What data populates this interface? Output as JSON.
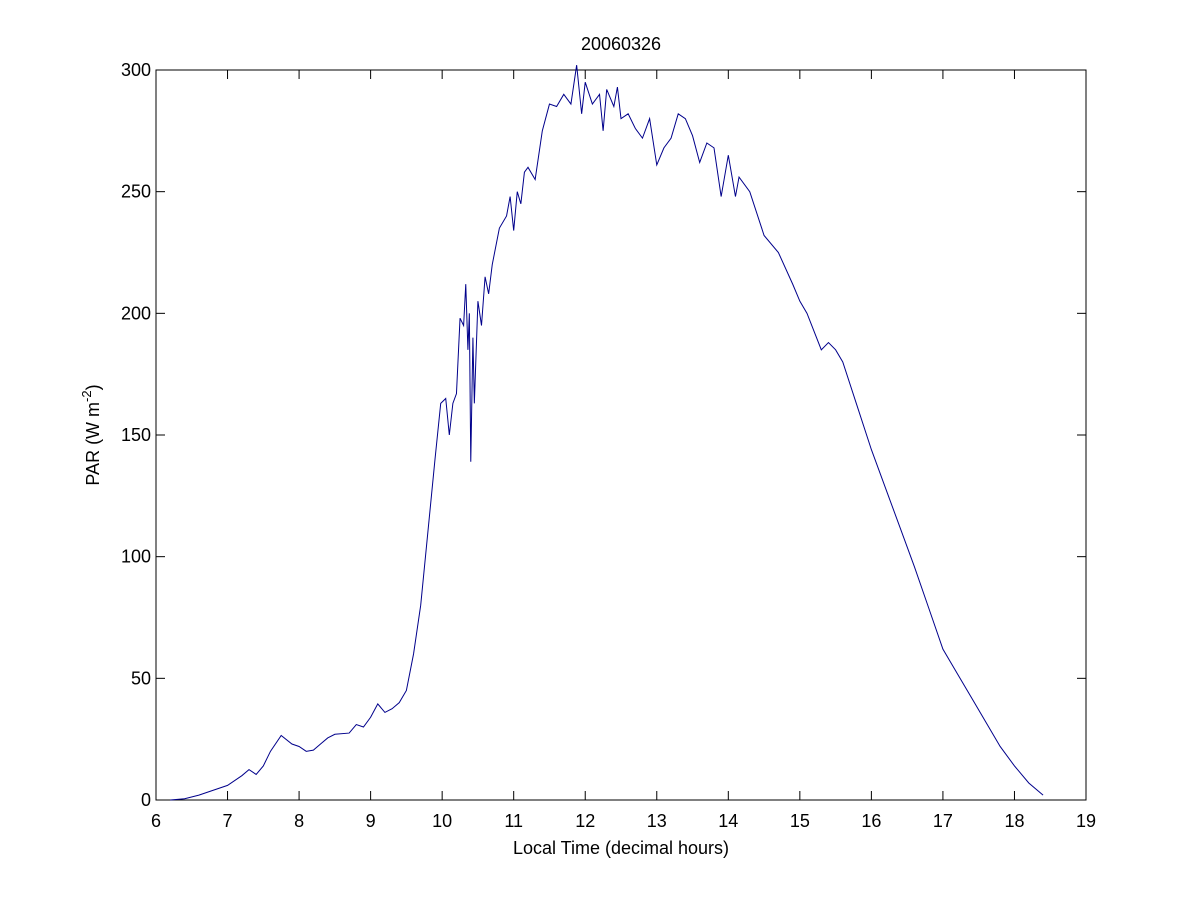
{
  "chart_data": {
    "type": "line",
    "title": "20060326",
    "xlabel": "Local Time (decimal hours)",
    "ylabel": [
      "PAR (W m",
      "-2",
      ")"
    ],
    "xlim": [
      6,
      19
    ],
    "xticks": [
      6,
      7,
      8,
      9,
      10,
      11,
      12,
      13,
      14,
      15,
      16,
      17,
      18,
      19
    ],
    "ylim": [
      0,
      300
    ],
    "yticks": [
      0,
      50,
      100,
      150,
      200,
      250,
      300
    ],
    "grid": false,
    "series": [
      {
        "color": "#00008b",
        "x": [
          6.2,
          6.4,
          6.6,
          6.8,
          7.0,
          7.2,
          7.3,
          7.4,
          7.5,
          7.6,
          7.75,
          7.9,
          8.0,
          8.1,
          8.2,
          8.3,
          8.4,
          8.5,
          8.7,
          8.8,
          8.9,
          9.0,
          9.1,
          9.2,
          9.3,
          9.4,
          9.5,
          9.6,
          9.7,
          9.8,
          9.9,
          9.98,
          10.05,
          10.1,
          10.15,
          10.2,
          10.25,
          10.3,
          10.33,
          10.36,
          10.38,
          10.4,
          10.43,
          10.45,
          10.5,
          10.55,
          10.6,
          10.65,
          10.7,
          10.8,
          10.9,
          10.95,
          11.0,
          11.05,
          11.1,
          11.15,
          11.2,
          11.3,
          11.4,
          11.5,
          11.6,
          11.7,
          11.8,
          11.88,
          11.95,
          12.0,
          12.1,
          12.2,
          12.25,
          12.3,
          12.4,
          12.45,
          12.5,
          12.6,
          12.7,
          12.8,
          12.9,
          13.0,
          13.1,
          13.2,
          13.3,
          13.4,
          13.5,
          13.6,
          13.7,
          13.8,
          13.9,
          14.0,
          14.1,
          14.15,
          14.3,
          14.5,
          14.7,
          14.9,
          15.0,
          15.1,
          15.3,
          15.4,
          15.5,
          15.6,
          15.8,
          16.0,
          16.2,
          16.4,
          16.6,
          16.8,
          17.0,
          17.2,
          17.4,
          17.6,
          17.8,
          18.0,
          18.2,
          18.4
        ],
        "values": [
          0,
          0.5,
          2,
          4,
          6,
          10,
          12.5,
          10.5,
          14,
          20,
          26.5,
          23,
          22,
          20,
          20.5,
          23,
          25.5,
          27,
          27.5,
          31,
          30,
          34,
          39.5,
          36,
          37.5,
          40,
          45,
          60,
          80,
          110,
          140,
          163,
          165,
          150,
          163,
          167,
          198,
          195,
          212,
          185,
          200,
          139,
          190,
          163,
          205,
          195,
          215,
          208,
          220,
          235,
          240,
          248,
          234,
          250,
          245,
          258,
          260,
          255,
          275,
          286,
          285,
          290,
          286,
          302,
          282,
          295,
          286,
          290,
          275,
          292,
          285,
          293,
          280,
          282,
          276,
          272,
          280,
          261,
          268,
          272,
          282,
          280,
          273,
          262,
          270,
          268,
          248,
          265,
          248,
          256,
          250,
          232,
          225,
          212,
          205,
          200,
          185,
          188,
          185,
          180,
          162,
          144,
          128,
          112,
          96,
          79,
          62,
          52,
          42,
          32,
          22,
          14,
          7,
          2
        ]
      }
    ]
  }
}
